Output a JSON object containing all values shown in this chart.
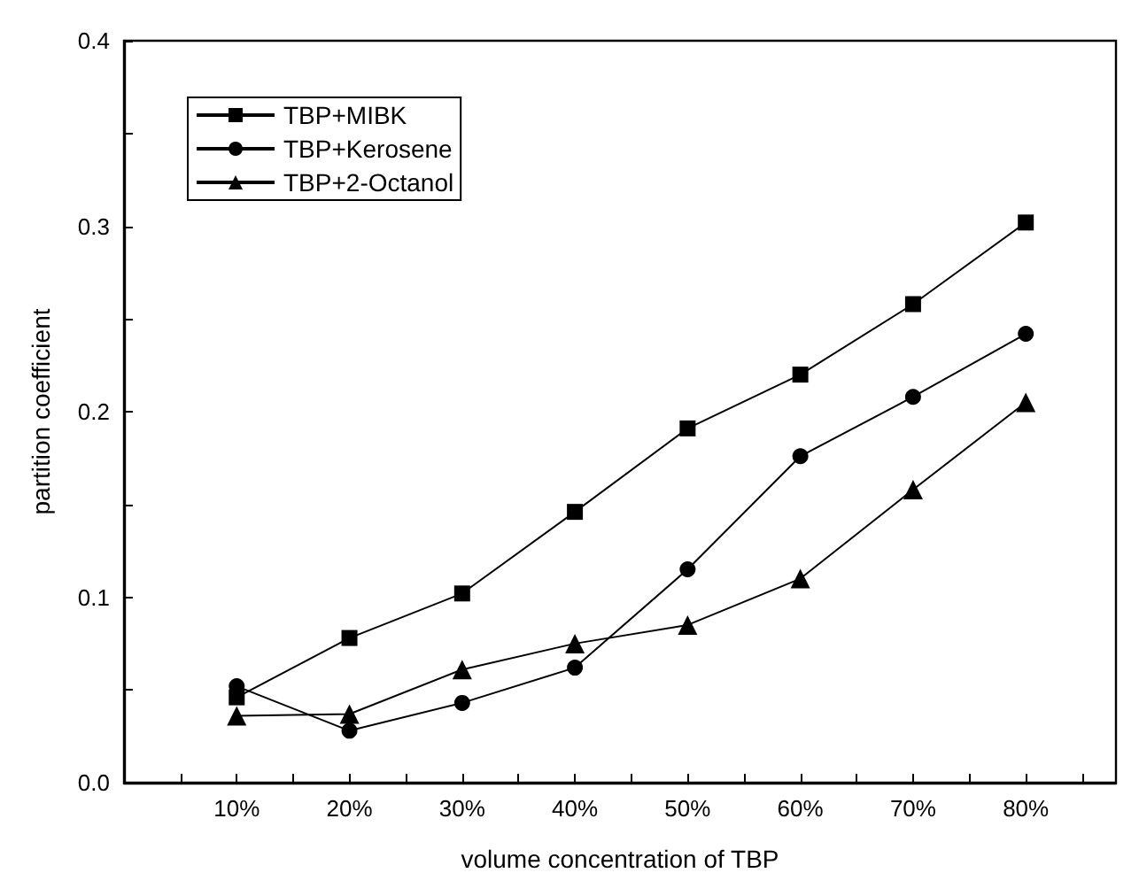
{
  "chart_data": {
    "type": "line",
    "xlabel": "volume concentration of TBP",
    "ylabel": "partition coefficient",
    "x": [
      10,
      20,
      30,
      40,
      50,
      60,
      70,
      80
    ],
    "xlim": [
      0,
      88
    ],
    "xticks": [
      {
        "value": 5,
        "label": null
      },
      {
        "value": 10,
        "label": "10%"
      },
      {
        "value": 15,
        "label": null
      },
      {
        "value": 20,
        "label": "20%"
      },
      {
        "value": 25,
        "label": null
      },
      {
        "value": 30,
        "label": "30%"
      },
      {
        "value": 35,
        "label": null
      },
      {
        "value": 40,
        "label": "40%"
      },
      {
        "value": 45,
        "label": null
      },
      {
        "value": 50,
        "label": "50%"
      },
      {
        "value": 55,
        "label": null
      },
      {
        "value": 60,
        "label": "60%"
      },
      {
        "value": 65,
        "label": null
      },
      {
        "value": 70,
        "label": "70%"
      },
      {
        "value": 75,
        "label": null
      },
      {
        "value": 80,
        "label": "80%"
      },
      {
        "value": 85,
        "label": null
      }
    ],
    "ylim": [
      0,
      0.4
    ],
    "yticks": [
      {
        "value": 0,
        "label": "0.0"
      },
      {
        "value": 0.05,
        "label": null
      },
      {
        "value": 0.1,
        "label": "0.1"
      },
      {
        "value": 0.15,
        "label": null
      },
      {
        "value": 0.2,
        "label": "0.2"
      },
      {
        "value": 0.25,
        "label": null
      },
      {
        "value": 0.3,
        "label": "0.3"
      },
      {
        "value": 0.35,
        "label": null
      },
      {
        "value": 0.4,
        "label": "0.4"
      }
    ],
    "grid": false,
    "legend": "top left",
    "line_style": "solid",
    "series": [
      {
        "name": "TBP+MIBK",
        "color": "#000000",
        "marker": "square",
        "values": [
          0.046,
          0.078,
          0.102,
          0.146,
          0.191,
          0.22,
          0.258,
          0.302
        ]
      },
      {
        "name": "TBP+Kerosene",
        "color": "#000000",
        "marker": "circle",
        "values": [
          0.052,
          0.028,
          0.043,
          0.062,
          0.115,
          0.176,
          0.208,
          0.242
        ]
      },
      {
        "name": "TBP+2-Octanol",
        "color": "#000000",
        "marker": "triangle",
        "values": [
          0.036,
          0.037,
          0.061,
          0.075,
          0.085,
          0.11,
          0.158,
          0.205
        ]
      }
    ]
  }
}
